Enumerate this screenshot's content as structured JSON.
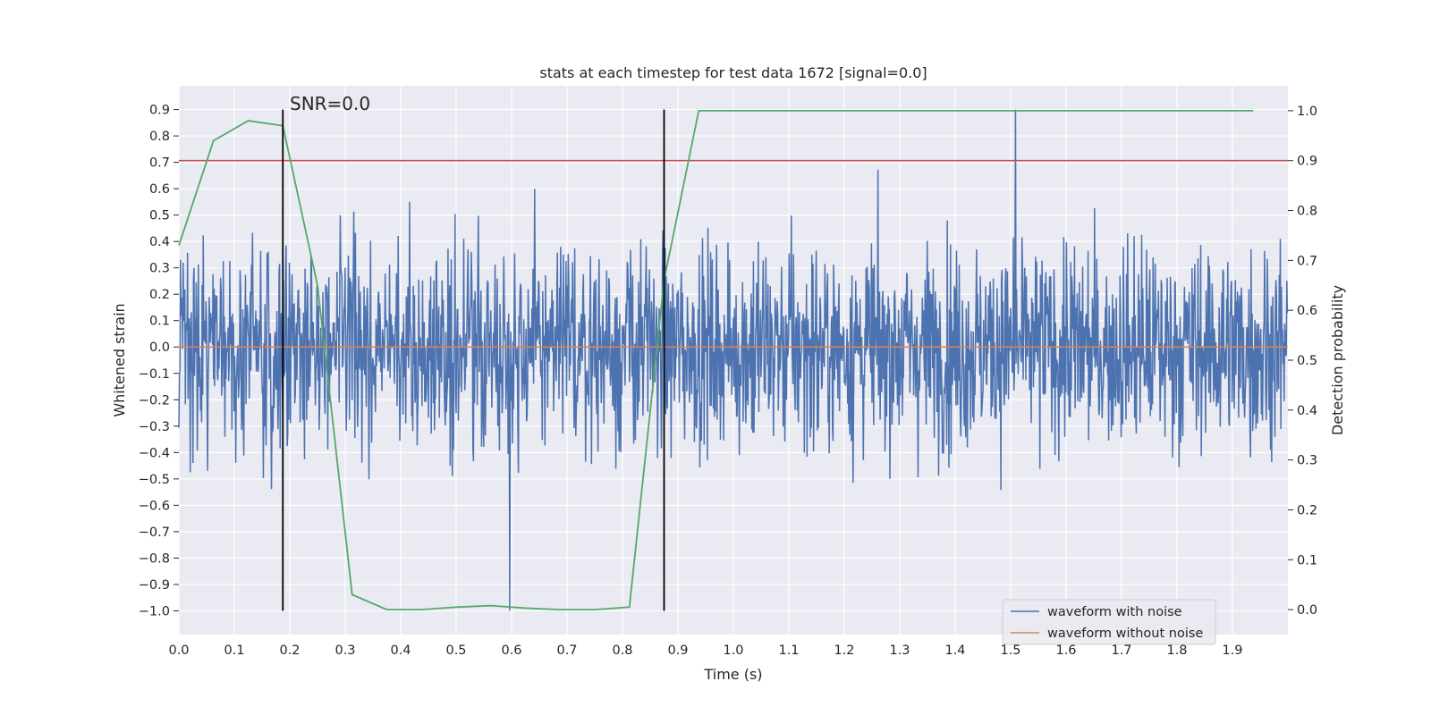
{
  "chart_data": {
    "type": "line",
    "title": "stats at each timestep for test data 1672 [signal=0.0]",
    "xlabel": "Time (s)",
    "ylabel": "Whitened strain",
    "y2label": "Detection probability",
    "xlim": [
      0.0,
      2.0
    ],
    "ylim": [
      -1.09,
      0.99
    ],
    "y2lim": [
      -0.05,
      1.05
    ],
    "xticks": [
      "0.0",
      "0.1",
      "0.2",
      "0.3",
      "0.4",
      "0.5",
      "0.6",
      "0.7",
      "0.8",
      "0.9",
      "1.0",
      "1.1",
      "1.2",
      "1.3",
      "1.4",
      "1.5",
      "1.6",
      "1.7",
      "1.8",
      "1.9"
    ],
    "yticks": [
      "0.9",
      "0.8",
      "0.7",
      "0.6",
      "0.5",
      "0.4",
      "0.3",
      "0.2",
      "0.1",
      "0.0",
      "−0.1",
      "−0.2",
      "−0.3",
      "−0.4",
      "−0.5",
      "−0.6",
      "−0.7",
      "−0.8",
      "−0.9",
      "−1.0"
    ],
    "y2ticks": [
      "1.0",
      "0.9",
      "0.8",
      "0.7",
      "0.6",
      "0.5",
      "0.4",
      "0.3",
      "0.2",
      "0.1",
      "0.0"
    ],
    "grid": true,
    "legend_position": "lower-right",
    "annotation": "SNR=0.0",
    "series": [
      {
        "name": "waveform with noise",
        "axis": "left",
        "color": "#4c72b0",
        "sample_count": 2048,
        "value_range": [
          -1.0,
          0.9
        ],
        "note": "noise trace, values roughly within -1.0 to 0.9; peaks near 0.6s (-1.0) and 1.51s (0.9)"
      },
      {
        "name": "waveform without noise",
        "axis": "left",
        "color": "#dd8452",
        "x": [
          0.0,
          2.0
        ],
        "y": [
          0.0,
          0.0
        ]
      },
      {
        "axis": "right",
        "color": "#55a868",
        "x": [
          0.0,
          0.0625,
          0.125,
          0.1875,
          0.25,
          0.3125,
          0.375,
          0.4375,
          0.5,
          0.5625,
          0.625,
          0.6875,
          0.75,
          0.8125,
          0.875,
          0.9375,
          1.0,
          1.0625,
          1.125,
          1.1875,
          1.25,
          1.3125,
          1.375,
          1.4375,
          1.5,
          1.5625,
          1.625,
          1.6875,
          1.75,
          1.8125,
          1.875,
          1.9375
        ],
        "y": [
          0.73,
          0.94,
          0.98,
          0.97,
          0.65,
          0.03,
          0.0,
          0.0,
          0.005,
          0.008,
          0.003,
          0.0,
          0.0,
          0.005,
          0.66,
          1.0,
          1.0,
          1.0,
          1.0,
          1.0,
          1.0,
          1.0,
          1.0,
          1.0,
          1.0,
          1.0,
          1.0,
          1.0,
          1.0,
          1.0,
          1.0,
          1.0
        ]
      }
    ],
    "threshold_line": {
      "axis": "right",
      "y": 0.9,
      "color": "#c44e52"
    },
    "vertical_markers": [
      {
        "x": 0.1875,
        "color": "#000000"
      },
      {
        "x": 0.875,
        "color": "#000000"
      }
    ]
  }
}
